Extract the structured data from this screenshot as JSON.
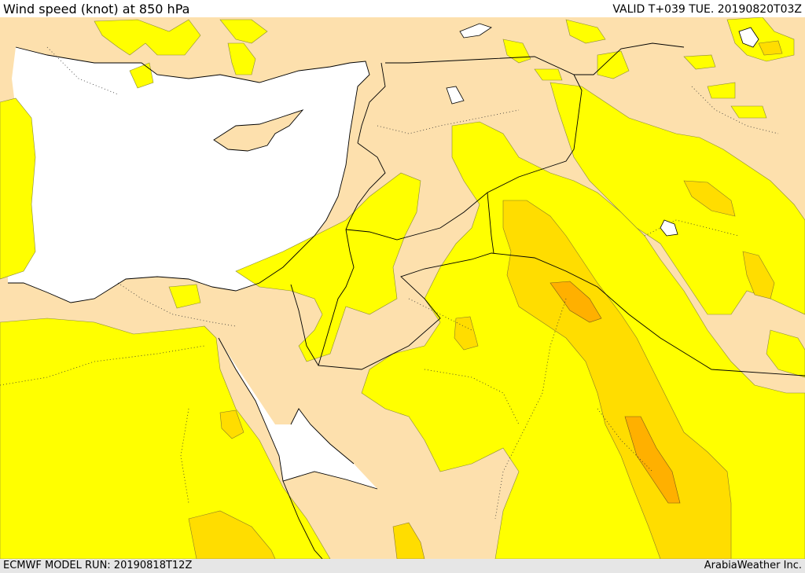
{
  "header": {
    "title": "Wind speed (knot) at 850 hPa",
    "valid_time": "VALID T+039 TUE. 20190820T03Z"
  },
  "footer": {
    "model_run": "ECMWF MODEL RUN: 20190818T12Z",
    "credit": "ArabiaWeather Inc."
  },
  "map": {
    "colors": {
      "sea": "#ffffff",
      "land_calm": "#fde0ad",
      "wind_band_1": "#ffff00",
      "wind_band_2": "#ffdd00",
      "wind_band_3": "#ffb000",
      "borders": "#000000"
    }
  }
}
